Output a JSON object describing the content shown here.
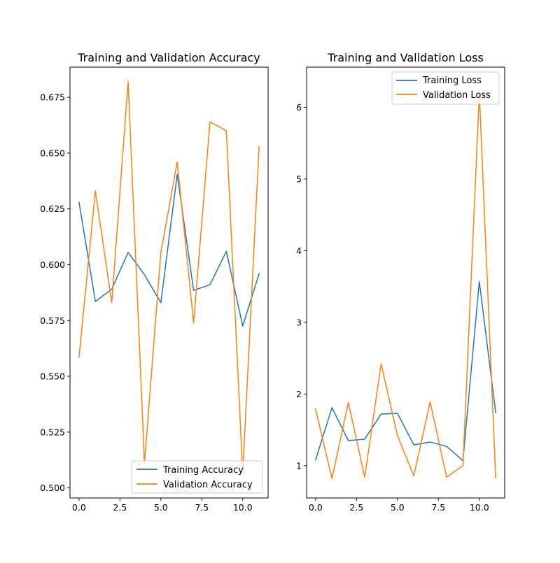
{
  "colors": {
    "series_1": "#1f77b4",
    "series_2": "#ff7f0e",
    "axes": "#000000",
    "background": "#ffffff",
    "legend_border": "#cccccc"
  },
  "chart_data": [
    {
      "type": "line",
      "title": "Training and Validation Accuracy",
      "xlabel": "",
      "ylabel": "",
      "x": [
        0,
        1,
        2,
        3,
        4,
        5,
        6,
        7,
        8,
        9,
        10,
        11
      ],
      "series": [
        {
          "name": "Training Accuracy",
          "color": "#1f77b4",
          "values": [
            0.628,
            0.5835,
            0.589,
            0.6055,
            0.5955,
            0.583,
            0.6405,
            0.5885,
            0.591,
            0.606,
            0.5725,
            0.596
          ]
        },
        {
          "name": "Validation Accuracy",
          "color": "#ff7f0e",
          "values": [
            0.5585,
            0.633,
            0.583,
            0.682,
            0.511,
            0.6055,
            0.646,
            0.574,
            0.664,
            0.66,
            0.5065,
            0.653
          ]
        }
      ],
      "xlim": [
        -0.55,
        11.55
      ],
      "ylim": [
        0.4955,
        0.6885
      ],
      "x_ticks": [
        0,
        2.5,
        5,
        7.5,
        10
      ],
      "x_tick_labels": [
        "0.0",
        "2.5",
        "5.0",
        "7.5",
        "10.0"
      ],
      "y_ticks": [
        0.5,
        0.525,
        0.55,
        0.575,
        0.6,
        0.625,
        0.65,
        0.675
      ],
      "y_tick_labels": [
        "0.500",
        "0.525",
        "0.550",
        "0.575",
        "0.600",
        "0.625",
        "0.650",
        "0.675"
      ],
      "legend_position": "lower right",
      "grid": false
    },
    {
      "type": "line",
      "title": "Training and Validation Loss",
      "xlabel": "",
      "ylabel": "",
      "x": [
        0,
        1,
        2,
        3,
        4,
        5,
        6,
        7,
        8,
        9,
        10,
        11
      ],
      "series": [
        {
          "name": "Training Loss",
          "color": "#1f77b4",
          "values": [
            1.08,
            1.81,
            1.35,
            1.37,
            1.72,
            1.73,
            1.29,
            1.33,
            1.27,
            1.07,
            3.57,
            1.74
          ]
        },
        {
          "name": "Validation Loss",
          "color": "#ff7f0e",
          "values": [
            1.79,
            0.82,
            1.88,
            0.84,
            2.42,
            1.42,
            0.86,
            1.89,
            0.84,
            1.0,
            6.2,
            0.83
          ]
        }
      ],
      "xlim": [
        -0.55,
        11.55
      ],
      "ylim": [
        0.55,
        6.56
      ],
      "x_ticks": [
        0,
        2.5,
        5,
        7.5,
        10
      ],
      "x_tick_labels": [
        "0.0",
        "2.5",
        "5.0",
        "7.5",
        "10.0"
      ],
      "y_ticks": [
        1,
        2,
        3,
        4,
        5,
        6
      ],
      "y_tick_labels": [
        "1",
        "2",
        "3",
        "4",
        "5",
        "6"
      ],
      "legend_position": "upper right",
      "grid": false
    }
  ]
}
